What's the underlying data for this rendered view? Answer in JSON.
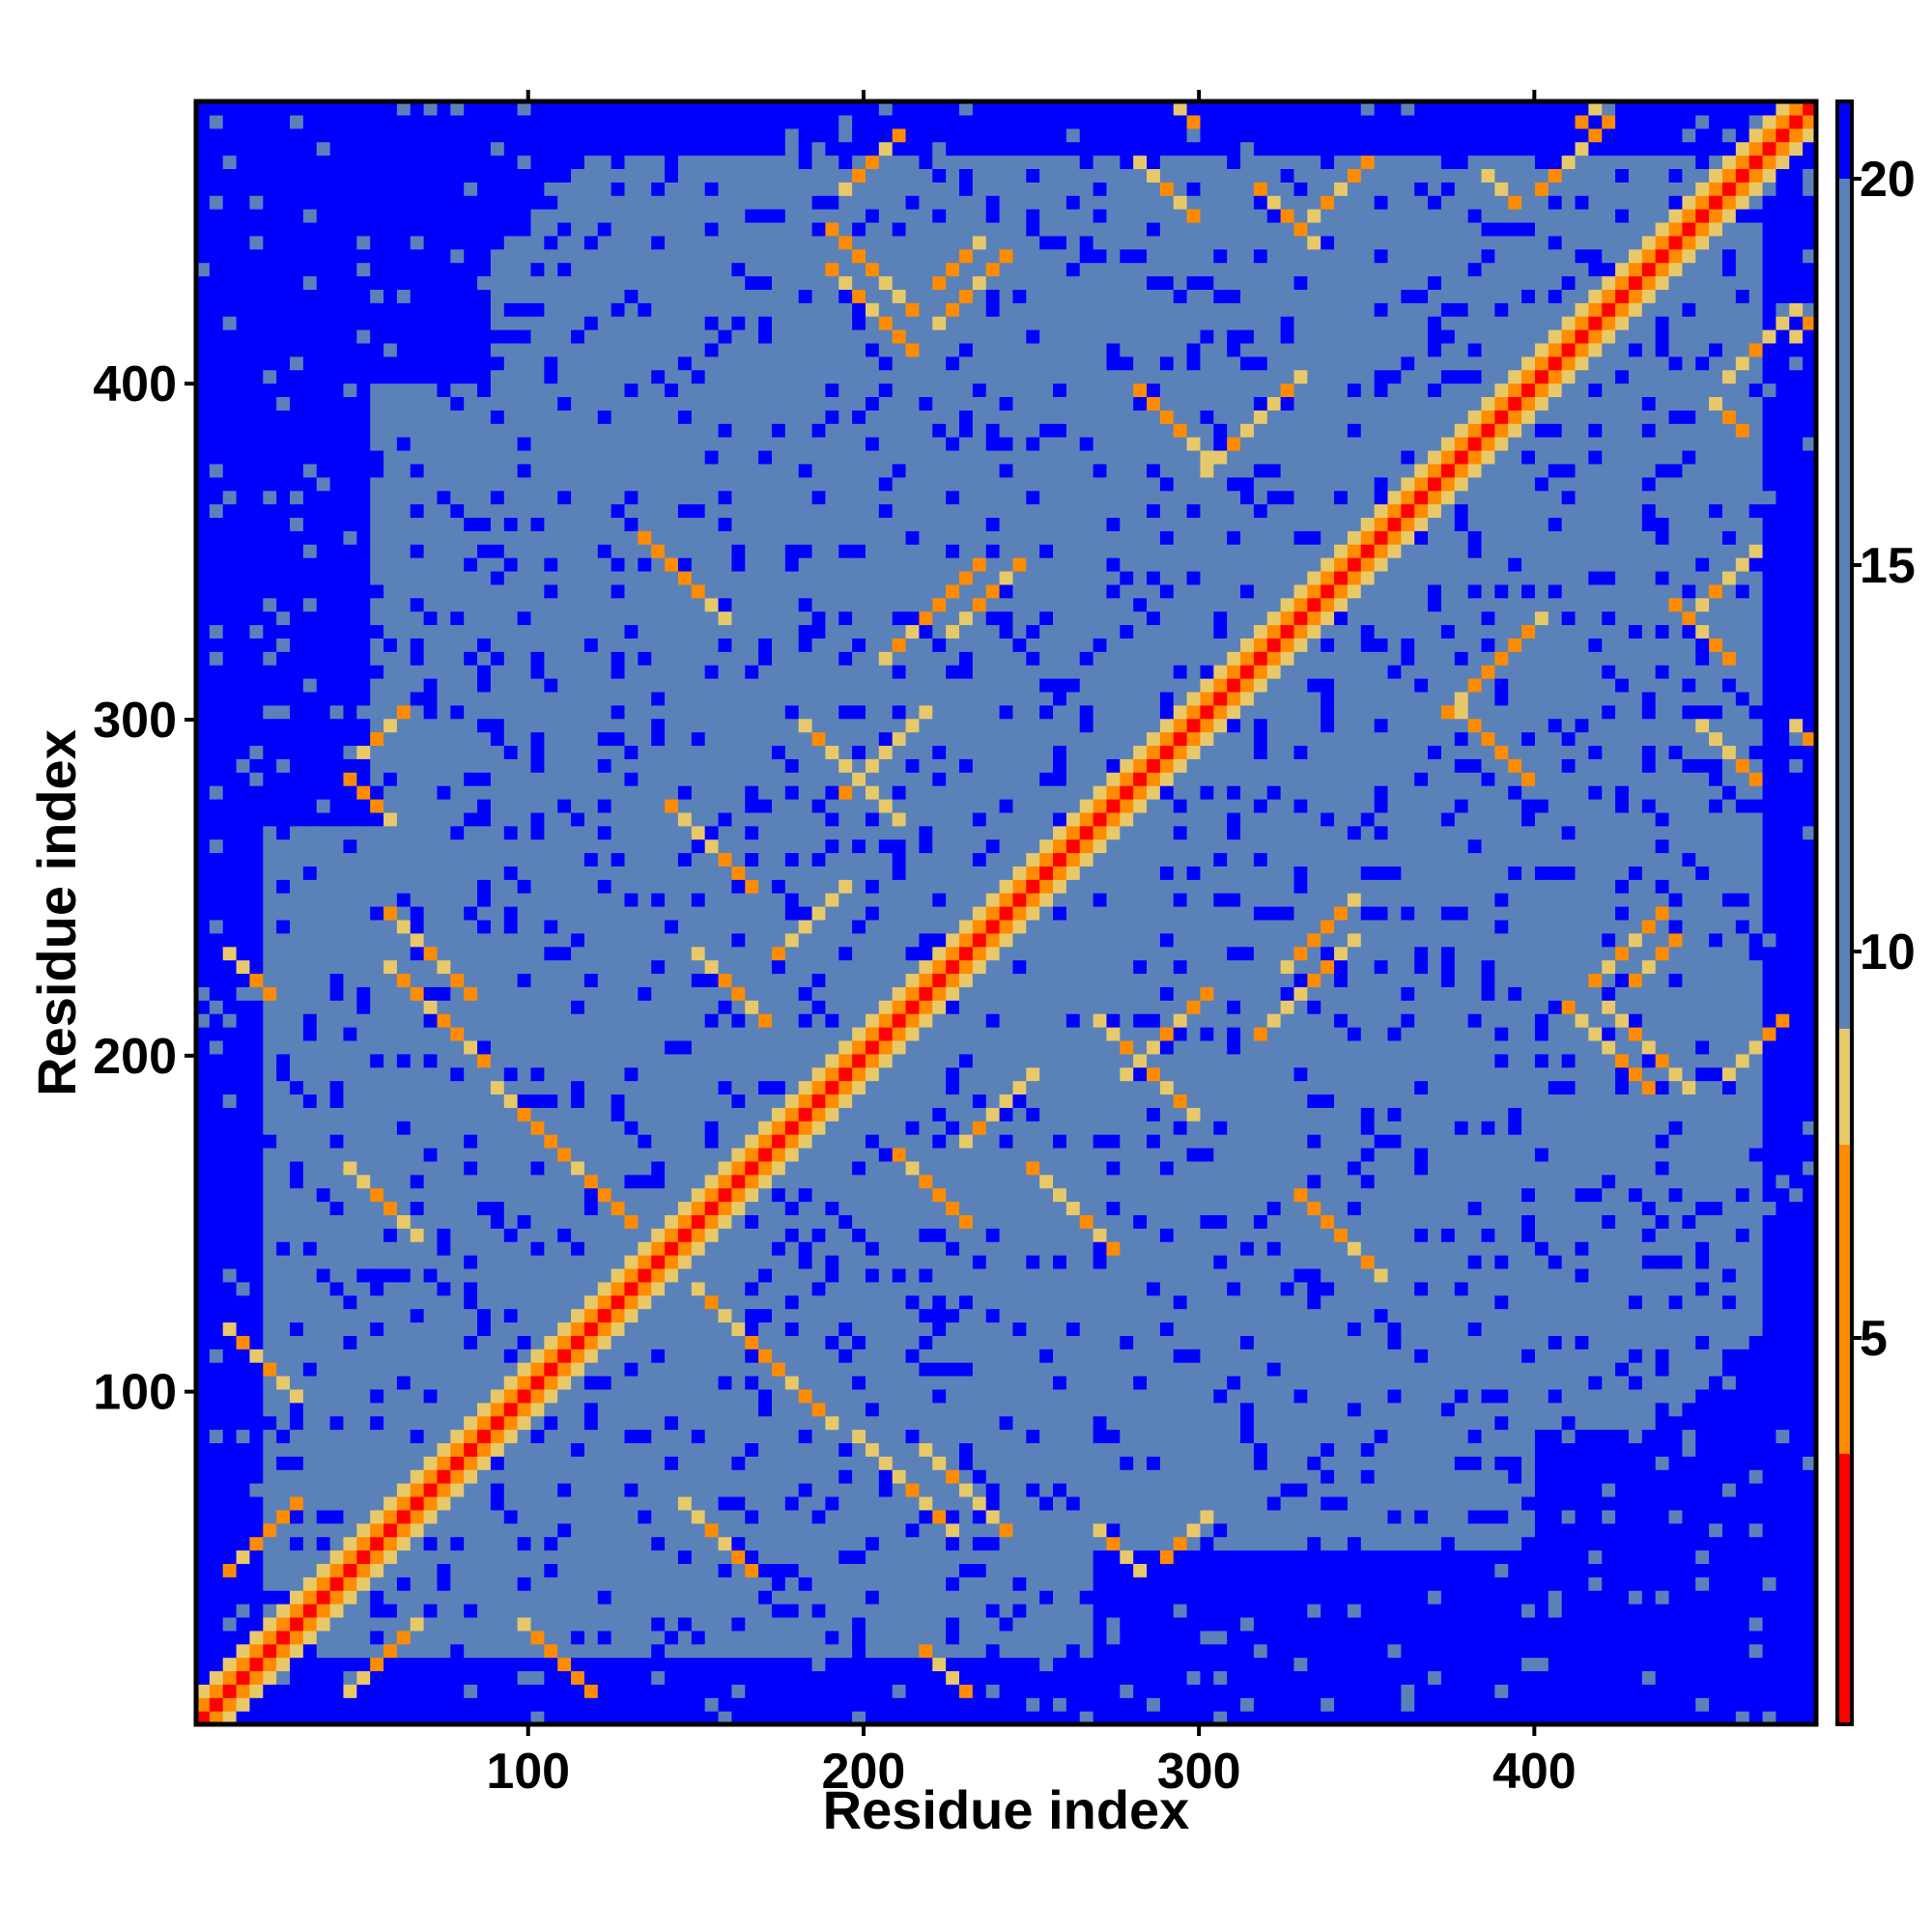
{
  "chart_data": {
    "type": "heatmap",
    "title": "",
    "xlabel": "Residue index",
    "ylabel": "Residue index",
    "xlim": [
      1,
      484
    ],
    "ylim": [
      1,
      484
    ],
    "x_ticks": [
      100,
      200,
      300,
      400
    ],
    "y_ticks": [
      100,
      200,
      300,
      400
    ],
    "x_tick_labels": [
      "100",
      "200",
      "300",
      "400"
    ],
    "y_tick_labels": [
      "100",
      "200",
      "300",
      "400"
    ],
    "colorbar": {
      "range": [
        0,
        21
      ],
      "ticks": [
        5,
        10,
        15,
        20
      ],
      "tick_labels": [
        "5",
        "10",
        "15",
        "20"
      ],
      "colors": {
        "near": "#ff0000",
        "mid": "#ff8c00",
        "light": "#e8c96a",
        "far": "#5b82b8",
        "max": "#0000ff"
      },
      "thresholds": [
        3.5,
        7.5,
        9,
        20
      ]
    },
    "structure": {
      "diagonal_value": 1.0,
      "dense_block_values": 15,
      "background_value": 21,
      "contact_value": 6
    },
    "grid": false,
    "legend": "colorbar-right"
  }
}
